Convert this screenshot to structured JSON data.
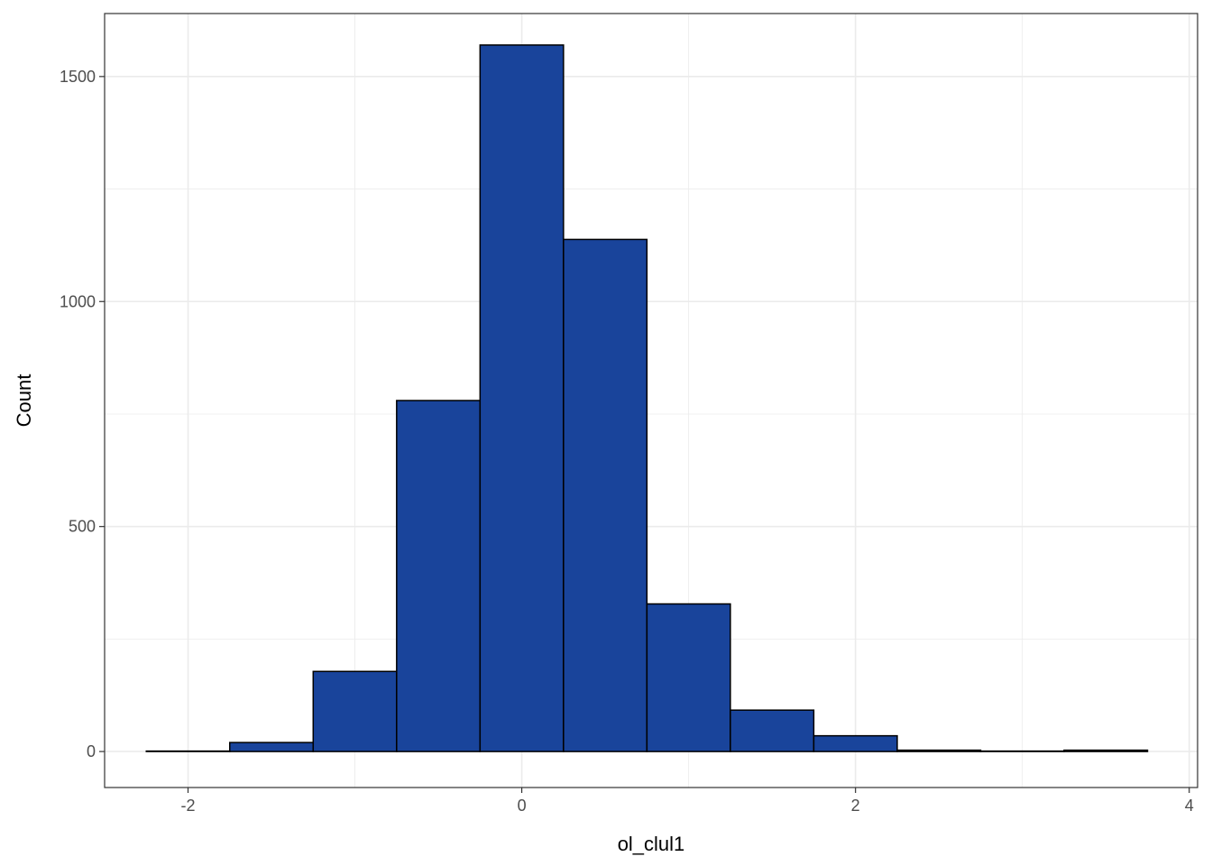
{
  "chart_data": {
    "type": "bar",
    "subtype": "histogram",
    "xlabel": "ol_clul1",
    "ylabel": "Count",
    "xlim": [
      -2.5,
      4.05
    ],
    "ylim": [
      -80,
      1640
    ],
    "x_ticks": [
      -2,
      0,
      2,
      4
    ],
    "x_tick_labels": [
      "-2",
      "0",
      "2",
      "4"
    ],
    "y_ticks": [
      0,
      500,
      1000,
      1500
    ],
    "y_tick_labels": [
      "0",
      "500",
      "1000",
      "1500"
    ],
    "grid": true,
    "bins": [
      {
        "x0": -2.25,
        "x1": -1.75,
        "count": 1
      },
      {
        "x0": -1.75,
        "x1": -1.25,
        "count": 20
      },
      {
        "x0": -1.25,
        "x1": -0.75,
        "count": 178
      },
      {
        "x0": -0.75,
        "x1": -0.25,
        "count": 780
      },
      {
        "x0": -0.25,
        "x1": 0.25,
        "count": 1570
      },
      {
        "x0": 0.25,
        "x1": 0.75,
        "count": 1138
      },
      {
        "x0": 0.75,
        "x1": 1.25,
        "count": 328
      },
      {
        "x0": 1.25,
        "x1": 1.75,
        "count": 92
      },
      {
        "x0": 1.75,
        "x1": 2.25,
        "count": 35
      },
      {
        "x0": 2.25,
        "x1": 2.75,
        "count": 3
      },
      {
        "x0": 2.75,
        "x1": 3.25,
        "count": 1
      },
      {
        "x0": 3.25,
        "x1": 3.75,
        "count": 3
      }
    ],
    "colors": {
      "bar_fill": "#19449b",
      "bar_stroke": "#000000",
      "grid": "#ebebeb",
      "panel_border": "#333333"
    }
  }
}
